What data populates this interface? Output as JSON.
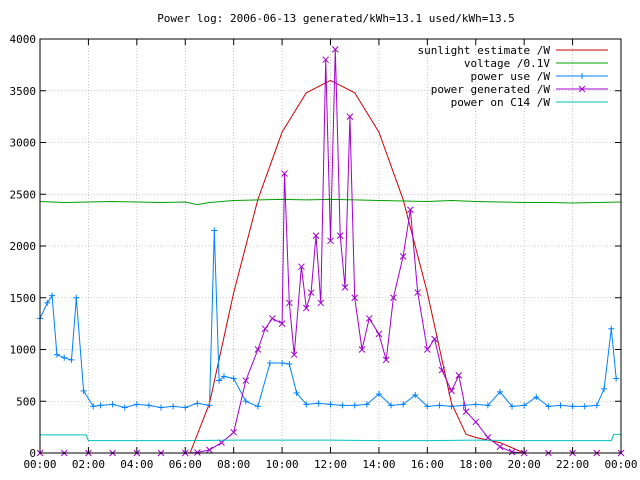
{
  "chart_data": {
    "type": "line",
    "title": "Power log: 2006-06-13 generated/kWh=13.1 used/kWh=13.5",
    "xlabel": "",
    "ylabel": "",
    "xlim": [
      0,
      24
    ],
    "ylim": [
      0,
      4000
    ],
    "x_ticks": [
      0,
      2,
      4,
      6,
      8,
      10,
      12,
      14,
      16,
      18,
      20,
      22,
      24
    ],
    "x_tick_labels": [
      "00:00",
      "02:00",
      "04:00",
      "06:00",
      "08:00",
      "10:00",
      "12:00",
      "14:00",
      "16:00",
      "18:00",
      "20:00",
      "22:00",
      "00:00"
    ],
    "y_ticks": [
      0,
      500,
      1000,
      1500,
      2000,
      2500,
      3000,
      3500,
      4000
    ],
    "y_tick_labels": [
      "0",
      "500",
      "1000",
      "1500",
      "2000",
      "2500",
      "3000",
      "3500",
      "4000"
    ],
    "grid": true,
    "legend_position": "top-right",
    "series": [
      {
        "name": "sunlight estimate /W",
        "color": "#cc0000",
        "marker": "none",
        "x": [
          6.2,
          7,
          8,
          9,
          10,
          11,
          12,
          13,
          14,
          15,
          16,
          17,
          17.6,
          18,
          19,
          20
        ],
        "y": [
          0,
          480,
          1550,
          2450,
          3100,
          3480,
          3600,
          3480,
          3100,
          2450,
          1550,
          480,
          180,
          150,
          100,
          0
        ]
      },
      {
        "name": "voltage /0.1V",
        "color": "#00a000",
        "marker": "none",
        "x": [
          0,
          1,
          2,
          3,
          4,
          5,
          6,
          6.5,
          7,
          8,
          9,
          10,
          11,
          12,
          13,
          14,
          15,
          16,
          17,
          18,
          19,
          20,
          21,
          22,
          23,
          24
        ],
        "y": [
          2430,
          2420,
          2425,
          2430,
          2425,
          2420,
          2425,
          2400,
          2420,
          2440,
          2445,
          2450,
          2445,
          2450,
          2445,
          2440,
          2435,
          2430,
          2440,
          2430,
          2425,
          2420,
          2420,
          2415,
          2420,
          2425
        ]
      },
      {
        "name": "power use /W",
        "color": "#0080ff",
        "marker": "plus",
        "x": [
          0,
          0.3,
          0.5,
          0.7,
          1.0,
          1.3,
          1.5,
          1.8,
          2.2,
          2.5,
          3.0,
          3.5,
          4.0,
          4.5,
          5.0,
          5.5,
          6.0,
          6.5,
          7.0,
          7.2,
          7.4,
          7.6,
          8.0,
          8.5,
          9.0,
          9.5,
          10.0,
          10.3,
          10.6,
          11.0,
          11.5,
          12.0,
          12.5,
          13.0,
          13.5,
          14.0,
          14.5,
          15.0,
          15.5,
          16.0,
          16.5,
          17.0,
          17.5,
          18.0,
          18.5,
          19.0,
          19.5,
          20.0,
          20.5,
          21.0,
          21.5,
          22.0,
          22.5,
          23.0,
          23.3,
          23.6,
          23.8
        ],
        "y": [
          1300,
          1450,
          1520,
          950,
          920,
          900,
          1500,
          600,
          450,
          460,
          470,
          440,
          470,
          460,
          440,
          450,
          440,
          480,
          460,
          2150,
          700,
          740,
          720,
          500,
          450,
          870,
          870,
          860,
          580,
          470,
          480,
          470,
          460,
          460,
          470,
          570,
          460,
          470,
          560,
          450,
          460,
          450,
          460,
          470,
          460,
          590,
          450,
          460,
          540,
          450,
          460,
          450,
          450,
          460,
          620,
          1200,
          720
        ]
      },
      {
        "name": "power generated /W",
        "color": "#a000d0",
        "marker": "cross",
        "x": [
          0,
          1,
          2,
          3,
          4,
          5,
          6,
          6.5,
          7,
          7.5,
          8,
          8.5,
          9,
          9.3,
          9.6,
          10,
          10.1,
          10.3,
          10.5,
          10.8,
          11,
          11.2,
          11.4,
          11.6,
          11.8,
          12,
          12.2,
          12.4,
          12.6,
          12.8,
          13,
          13.3,
          13.6,
          14,
          14.3,
          14.6,
          15,
          15.3,
          15.6,
          16,
          16.3,
          16.6,
          17,
          17.3,
          17.6,
          18,
          18.5,
          19,
          19.5,
          20,
          21,
          22,
          23,
          24
        ],
        "y": [
          0,
          0,
          0,
          0,
          0,
          0,
          0,
          5,
          30,
          100,
          200,
          700,
          1000,
          1200,
          1300,
          1250,
          2700,
          1450,
          950,
          1800,
          1400,
          1550,
          2100,
          1450,
          3800,
          2050,
          3900,
          2100,
          1600,
          3250,
          1500,
          1000,
          1300,
          1150,
          900,
          1500,
          1900,
          2350,
          1550,
          1000,
          1100,
          800,
          600,
          750,
          400,
          300,
          150,
          60,
          10,
          0,
          0,
          0,
          0,
          0
        ]
      },
      {
        "name": "power on C14 /W",
        "color": "#00c0c0",
        "marker": "none",
        "x": [
          0,
          1.9,
          2.0,
          4,
          6,
          8,
          10,
          12,
          14,
          16,
          18,
          20,
          22,
          23.6,
          23.7,
          24
        ],
        "y": [
          175,
          175,
          120,
          120,
          120,
          125,
          125,
          125,
          120,
          120,
          125,
          120,
          120,
          120,
          180,
          180
        ]
      }
    ]
  }
}
